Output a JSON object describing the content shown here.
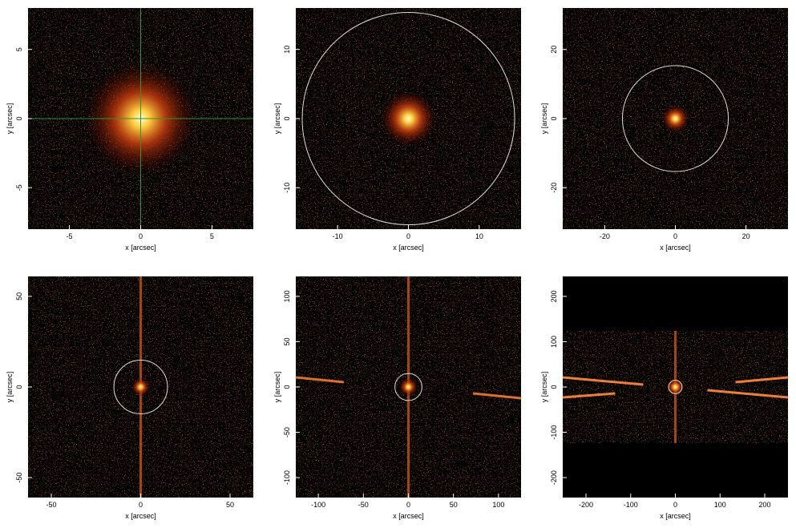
{
  "chart_data": [
    {
      "type": "image",
      "xlabel": "x [arcsec]",
      "ylabel": "y [arcsec]",
      "xlim": [
        -7.9,
        7.9
      ],
      "ylim": [
        -8,
        8
      ],
      "xticks": [
        -5,
        0,
        5
      ],
      "yticks": [
        -5,
        0,
        5
      ],
      "crosshair": true
    },
    {
      "type": "image",
      "xlabel": "x [arcsec]",
      "ylabel": "y [arcsec]",
      "xlim": [
        -15.9,
        15.9
      ],
      "ylim": [
        -16,
        16
      ],
      "xticks": [
        -10,
        0,
        10
      ],
      "yticks": [
        -10,
        0,
        10
      ],
      "circle_radius": 15
    },
    {
      "type": "image",
      "xlabel": "x [arcsec]",
      "ylabel": "y [arcsec]",
      "xlim": [
        -31.9,
        31.9
      ],
      "ylim": [
        -32,
        32
      ],
      "xticks": [
        -20,
        0,
        20
      ],
      "yticks": [
        -20,
        0,
        20
      ],
      "circle_radius": 15
    },
    {
      "type": "image",
      "xlabel": "x [arcsec]",
      "ylabel": "y [arcsec]",
      "xlim": [
        -63,
        63
      ],
      "ylim": [
        -61,
        61
      ],
      "xticks": [
        -50,
        0,
        50
      ],
      "yticks": [
        -50,
        0,
        50
      ],
      "circle_radius": 15
    },
    {
      "type": "image",
      "xlabel": "x [arcsec]",
      "ylabel": "y [arcsec]",
      "xlim": [
        -125,
        125
      ],
      "ylim": [
        -122,
        122
      ],
      "xticks": [
        -100,
        -50,
        0,
        50,
        100
      ],
      "yticks": [
        -100,
        -50,
        0,
        50,
        100
      ],
      "circle_radius": 15
    },
    {
      "type": "image",
      "xlabel": "x [arcsec]",
      "ylabel": "y [arcsec]",
      "xlim": [
        -252,
        252
      ],
      "ylim": [
        -244,
        244
      ],
      "xticks": [
        -200,
        -100,
        0,
        100,
        200
      ],
      "yticks": [
        -200,
        -100,
        0,
        100,
        200
      ],
      "circle_radius": 15
    }
  ]
}
